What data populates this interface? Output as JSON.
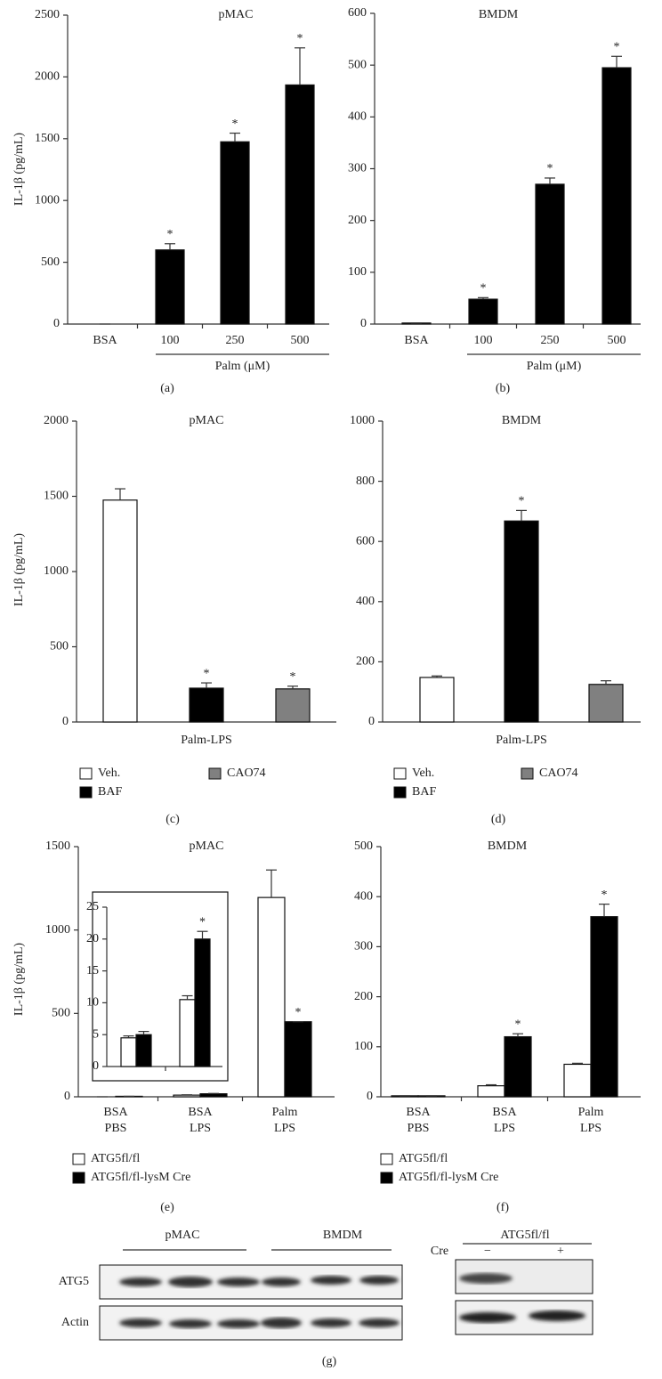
{
  "chart_data": [
    {
      "type": "bar",
      "title": "pMAC",
      "ylabel": "IL-1β (pg/mL)",
      "caption": "(a)",
      "categories": [
        "BSA",
        "100",
        "250",
        "500"
      ],
      "x_group_label": "Palm (μM)",
      "series": [
        {
          "color": "#000000",
          "values": [
            0,
            600,
            1475,
            1935
          ],
          "errors": [
            0,
            50,
            70,
            300
          ],
          "significance": [
            null,
            "*",
            "*",
            "*"
          ]
        }
      ],
      "ylim": [
        0,
        2500
      ],
      "yticks": [
        0,
        500,
        1000,
        1500,
        2000,
        2500
      ]
    },
    {
      "type": "bar",
      "title": "BMDM",
      "caption": "(b)",
      "categories": [
        "BSA",
        "100",
        "250",
        "500"
      ],
      "x_group_label": "Palm (μM)",
      "series": [
        {
          "color": "#000000",
          "values": [
            2,
            48,
            270,
            495
          ],
          "errors": [
            0,
            3,
            12,
            22
          ],
          "significance": [
            null,
            "*",
            "*",
            "*"
          ]
        }
      ],
      "ylim": [
        0,
        600
      ],
      "yticks": [
        0,
        100,
        200,
        300,
        400,
        500,
        600
      ]
    },
    {
      "type": "bar",
      "title": "pMAC",
      "ylabel": "IL-1β (pg/mL)",
      "caption": "(c)",
      "categories": [
        "Palm-LPS"
      ],
      "legend": "below",
      "series": [
        {
          "name": "Veh.",
          "color": "#ffffff",
          "values": [
            1475
          ],
          "errors": [
            75
          ],
          "significance": [
            null
          ]
        },
        {
          "name": "BAF",
          "color": "#000000",
          "values": [
            225
          ],
          "errors": [
            35
          ],
          "significance": [
            "*"
          ]
        },
        {
          "name": "CAO74",
          "color": "#808080",
          "values": [
            220
          ],
          "errors": [
            18
          ],
          "significance": [
            "*"
          ]
        }
      ],
      "ylim": [
        0,
        2000
      ],
      "yticks": [
        0,
        500,
        1000,
        1500,
        2000
      ]
    },
    {
      "type": "bar",
      "title": "BMDM",
      "caption": "(d)",
      "categories": [
        "Palm-LPS"
      ],
      "legend": "below",
      "series": [
        {
          "name": "Veh.",
          "color": "#ffffff",
          "values": [
            148
          ],
          "errors": [
            5
          ],
          "significance": [
            null
          ]
        },
        {
          "name": "BAF",
          "color": "#000000",
          "values": [
            668
          ],
          "errors": [
            35
          ],
          "significance": [
            "*"
          ]
        },
        {
          "name": "CAO74",
          "color": "#808080",
          "values": [
            125
          ],
          "errors": [
            12
          ],
          "significance": [
            null
          ]
        }
      ],
      "ylim": [
        0,
        1000
      ],
      "yticks": [
        0,
        200,
        400,
        600,
        800,
        1000
      ]
    },
    {
      "type": "bar",
      "title": "pMAC",
      "ylabel": "IL-1β (pg/mL)",
      "caption": "(e)",
      "categories": [
        [
          "BSA",
          "PBS"
        ],
        [
          "BSA",
          "LPS"
        ],
        [
          "Palm",
          "LPS"
        ]
      ],
      "legend": "below",
      "series": [
        {
          "name": "ATG5fl/fl",
          "color": "#ffffff",
          "values": [
            0,
            10,
            1195
          ],
          "errors": [
            0,
            2,
            165
          ],
          "significance": [
            null,
            null,
            null
          ]
        },
        {
          "name": "ATG5fl/fl-lysM Cre",
          "color": "#000000",
          "values": [
            3,
            18,
            450
          ],
          "errors": [
            0,
            2,
            0
          ],
          "significance": [
            null,
            null,
            "*"
          ]
        }
      ],
      "ylim": [
        0,
        1500
      ],
      "yticks": [
        0,
        500,
        1000,
        1500
      ],
      "inset": {
        "type": "bar",
        "categories": [
          null,
          null
        ],
        "series": [
          {
            "color": "#ffffff",
            "values": [
              4.5,
              10.5
            ],
            "errors": [
              0.3,
              0.6
            ],
            "significance": [
              null,
              null
            ]
          },
          {
            "color": "#000000",
            "values": [
              5,
              20
            ],
            "errors": [
              0.5,
              1.2
            ],
            "significance": [
              null,
              "*"
            ]
          }
        ],
        "ylim": [
          0,
          25
        ],
        "yticks": [
          0,
          5,
          10,
          15,
          20,
          25
        ]
      }
    },
    {
      "type": "bar",
      "title": "BMDM",
      "caption": "(f)",
      "categories": [
        [
          "BSA",
          "PBS"
        ],
        [
          "BSA",
          "LPS"
        ],
        [
          "Palm",
          "LPS"
        ]
      ],
      "legend": "below",
      "series": [
        {
          "name": "ATG5fl/fl",
          "color": "#ffffff",
          "values": [
            2,
            22,
            65
          ],
          "errors": [
            0,
            2,
            2
          ],
          "significance": [
            null,
            null,
            null
          ]
        },
        {
          "name": "ATG5fl/fl-lysM Cre",
          "color": "#000000",
          "values": [
            2,
            120,
            360
          ],
          "errors": [
            0,
            6,
            25
          ],
          "significance": [
            null,
            "*",
            "*"
          ]
        }
      ],
      "ylim": [
        0,
        500
      ],
      "yticks": [
        0,
        100,
        200,
        300,
        400,
        500
      ]
    }
  ],
  "blot": {
    "column_groups": [
      "pMAC",
      "BMDM"
    ],
    "rows": [
      "ATG5",
      "Actin"
    ],
    "caption": "(g)",
    "knockout": {
      "title": "ATG5fl/fl",
      "row_label": "Cre",
      "lanes": [
        "−",
        "+"
      ]
    }
  }
}
